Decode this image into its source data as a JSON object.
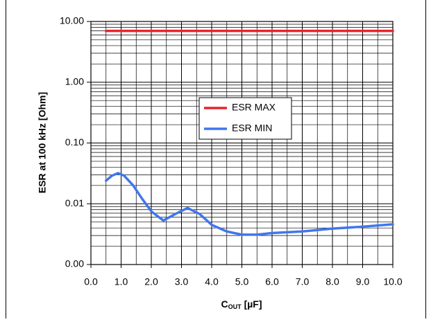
{
  "chart_data": {
    "type": "line",
    "ylabel": "ESR at 100 kHz [Ohm]",
    "xlabel": {
      "main": "C",
      "sub": "OUT",
      "unit": "[µF]"
    },
    "log_y": true,
    "grid": true,
    "legend": "center",
    "xlim": [
      0,
      10
    ],
    "ylim": [
      0.001,
      10
    ],
    "xticks": [
      {
        "value": 0,
        "label": "0.0"
      },
      {
        "value": 1,
        "label": "1.0"
      },
      {
        "value": 2,
        "label": "2.0"
      },
      {
        "value": 3,
        "label": "3.0"
      },
      {
        "value": 4,
        "label": "4.0"
      },
      {
        "value": 5,
        "label": "5.0"
      },
      {
        "value": 6,
        "label": "6.0"
      },
      {
        "value": 7,
        "label": "7.0"
      },
      {
        "value": 8,
        "label": "8.0"
      },
      {
        "value": 9,
        "label": "9.0"
      },
      {
        "value": 10,
        "label": "10.0"
      }
    ],
    "yticks": [
      {
        "value": 0.001,
        "label": "0.00"
      },
      {
        "value": 0.01,
        "label": "0.01"
      },
      {
        "value": 0.1,
        "label": "0.10"
      },
      {
        "value": 1,
        "label": "1.00"
      },
      {
        "value": 10,
        "label": "10.00"
      }
    ],
    "series": [
      {
        "name": "ESR MAX",
        "color": "#e8242c",
        "x": [
          0.5,
          10
        ],
        "values": [
          7,
          7
        ]
      },
      {
        "name": "ESR MIN",
        "color": "#3f76ee",
        "x": [
          0.5,
          0.7,
          0.9,
          1.1,
          1.4,
          1.7,
          2.0,
          2.4,
          2.8,
          3.2,
          3.6,
          4.0,
          4.5,
          5.0,
          5.5,
          6,
          7,
          8,
          9,
          10
        ],
        "values": [
          0.024,
          0.029,
          0.032,
          0.029,
          0.02,
          0.012,
          0.0075,
          0.0053,
          0.0068,
          0.0085,
          0.0068,
          0.0045,
          0.0035,
          0.0031,
          0.0031,
          0.0033,
          0.0035,
          0.0039,
          0.0042,
          0.0046
        ]
      }
    ]
  }
}
